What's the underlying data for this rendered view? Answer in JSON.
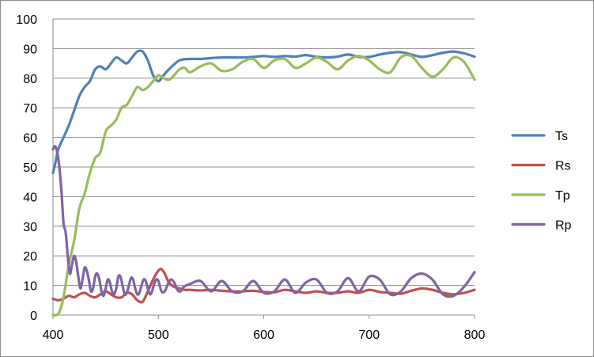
{
  "chart_data": {
    "type": "line",
    "title": "",
    "xlabel": "",
    "ylabel": "",
    "xlim": [
      400,
      800
    ],
    "ylim": [
      0,
      100
    ],
    "x_ticks": [
      400,
      500,
      600,
      700,
      800
    ],
    "y_ticks": [
      0,
      10,
      20,
      30,
      40,
      50,
      60,
      70,
      80,
      90,
      100
    ],
    "grid": "horizontal",
    "legend_position": "right",
    "series": [
      {
        "name": "Ts",
        "color": "#4F81BD",
        "x": [
          400,
          402,
          405,
          410,
          415,
          420,
          425,
          430,
          435,
          440,
          445,
          450,
          455,
          460,
          465,
          470,
          475,
          480,
          485,
          490,
          495,
          500,
          505,
          510,
          520,
          530,
          540,
          550,
          560,
          570,
          580,
          590,
          600,
          610,
          620,
          630,
          640,
          650,
          660,
          670,
          680,
          690,
          700,
          710,
          720,
          730,
          740,
          750,
          760,
          770,
          780,
          790,
          800
        ],
        "y": [
          48,
          51,
          56,
          60,
          64,
          69,
          74,
          77,
          79,
          83,
          84,
          83,
          85,
          87,
          86,
          85,
          87,
          89,
          89,
          86,
          81,
          79,
          81,
          83,
          86,
          86.5,
          86.5,
          86.8,
          87,
          87,
          87,
          87.2,
          87.5,
          87.2,
          87.5,
          87.3,
          87.8,
          87.2,
          87,
          87.3,
          88,
          87.2,
          87.2,
          88,
          88.6,
          88.8,
          88,
          87.2,
          87.8,
          88.6,
          89,
          88.4,
          87.3
        ]
      },
      {
        "name": "Rs",
        "color": "#C0504D",
        "x": [
          400,
          405,
          410,
          415,
          420,
          425,
          430,
          435,
          440,
          445,
          450,
          455,
          460,
          465,
          470,
          475,
          480,
          485,
          490,
          495,
          500,
          503,
          506,
          510,
          515,
          520,
          525,
          530,
          540,
          550,
          560,
          570,
          580,
          590,
          600,
          610,
          620,
          630,
          640,
          650,
          660,
          670,
          680,
          690,
          700,
          710,
          720,
          730,
          740,
          750,
          760,
          770,
          780,
          790,
          800
        ],
        "y": [
          5.5,
          5,
          5.5,
          6.5,
          6,
          7,
          7.5,
          6.5,
          6,
          7,
          8,
          7,
          6,
          6,
          7.5,
          7,
          5,
          4.5,
          8,
          12,
          15,
          15.5,
          14,
          11,
          9.5,
          9,
          8.5,
          8.5,
          8.3,
          8.5,
          8.2,
          8,
          8,
          8.2,
          7.8,
          7.7,
          8.5,
          8,
          7.5,
          8,
          7.5,
          7.5,
          8,
          7.5,
          8.5,
          7.8,
          7.5,
          7.2,
          8.2,
          9,
          8.5,
          7.5,
          7,
          7.5,
          8.5
        ]
      },
      {
        "name": "Tp",
        "color": "#9BBB59",
        "x": [
          400,
          403,
          406,
          410,
          415,
          420,
          425,
          430,
          435,
          440,
          445,
          450,
          455,
          460,
          465,
          470,
          475,
          480,
          485,
          490,
          495,
          500,
          505,
          510,
          515,
          520,
          525,
          530,
          540,
          550,
          560,
          570,
          580,
          590,
          600,
          610,
          620,
          630,
          640,
          650,
          660,
          670,
          680,
          690,
          700,
          710,
          720,
          730,
          740,
          750,
          760,
          770,
          780,
          790,
          800
        ],
        "y": [
          0,
          0,
          1,
          6,
          17,
          25,
          36,
          41,
          48,
          53,
          55,
          62,
          64,
          66,
          70,
          71,
          74,
          77,
          76,
          77,
          79,
          81,
          80,
          79.5,
          81,
          83,
          83.5,
          82,
          84,
          85,
          82.5,
          83,
          85.5,
          86.5,
          83.5,
          86,
          86.5,
          83.5,
          85,
          87,
          85.5,
          83,
          86,
          87.5,
          86,
          83,
          82,
          87,
          87.5,
          83.5,
          80.5,
          83,
          87,
          85.5,
          79.5
        ]
      },
      {
        "name": "Rp",
        "color": "#8064A2",
        "x": [
          400,
          402,
          404,
          406,
          408,
          410,
          412,
          414,
          416,
          418,
          420,
          422,
          424,
          426,
          428,
          430,
          432,
          434,
          436,
          438,
          440,
          442,
          444,
          446,
          448,
          450,
          452,
          454,
          456,
          458,
          460,
          462,
          464,
          466,
          468,
          470,
          472,
          474,
          476,
          478,
          480,
          482,
          484,
          486,
          488,
          490,
          492,
          494,
          496,
          498,
          500,
          503,
          506,
          509,
          512,
          515,
          518,
          521,
          524,
          530,
          540,
          550,
          560,
          570,
          580,
          590,
          600,
          610,
          620,
          630,
          640,
          650,
          660,
          670,
          680,
          690,
          700,
          710,
          720,
          730,
          740,
          750,
          760,
          770,
          780,
          790,
          800
        ],
        "y": [
          56,
          57,
          55,
          50,
          42,
          31,
          28,
          20,
          14,
          17,
          20,
          18,
          13,
          9,
          12,
          16,
          15,
          12,
          8,
          9,
          13,
          14,
          12,
          8,
          6.5,
          9,
          12,
          11,
          8,
          7,
          9,
          13,
          13,
          10,
          7,
          7.5,
          10,
          12.5,
          12,
          9,
          7,
          7.5,
          10,
          12,
          11.5,
          9,
          7,
          8,
          10.5,
          12,
          11.5,
          8,
          8,
          10.5,
          12,
          11,
          8.5,
          8,
          9.5,
          10.5,
          11.5,
          8,
          11.5,
          8,
          8,
          11.5,
          7.5,
          8,
          12,
          7.5,
          11,
          12,
          7.5,
          8,
          12.5,
          8,
          13,
          12,
          7,
          8,
          12.5,
          14,
          12,
          7,
          6.5,
          9.5,
          14.5
        ]
      }
    ]
  }
}
